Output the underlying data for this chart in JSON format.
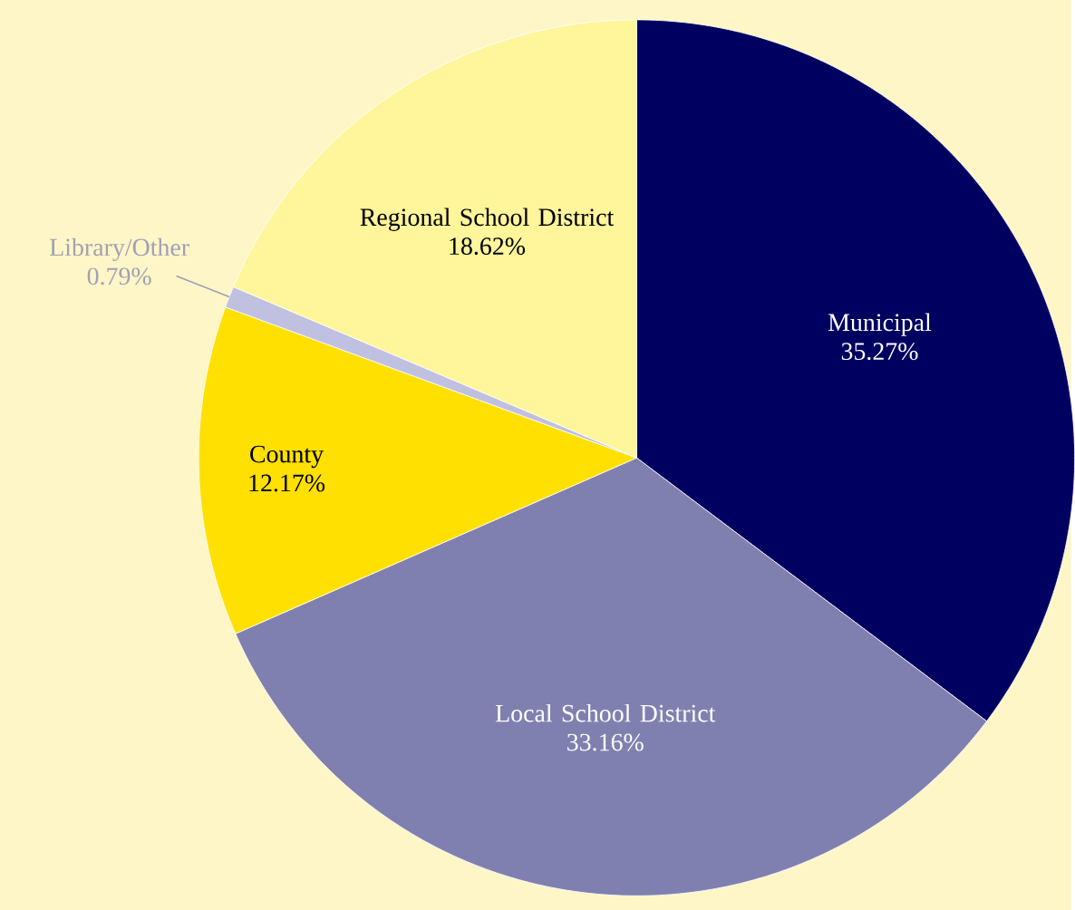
{
  "chart_data": {
    "type": "pie",
    "categories": [
      "Municipal",
      "Local School District",
      "County",
      "Library/Other",
      "Regional School District"
    ],
    "values": [
      35.27,
      33.16,
      12.17,
      0.79,
      18.62
    ],
    "colors": [
      "#000060",
      "#8080b0",
      "#ffe000",
      "#c0c0e0",
      "#fff59a"
    ],
    "value_labels": [
      "35.27%",
      "33.16%",
      "12.17%",
      "0.79%",
      "18.62%"
    ]
  }
}
